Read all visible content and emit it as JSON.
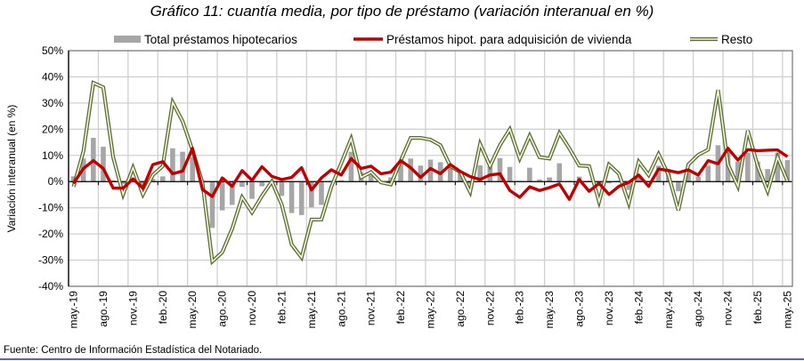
{
  "chart_data": {
    "type": "bar+line",
    "title": "Gráfico 11: cuantía media, por tipo de préstamo (variación interanual en %)",
    "ylabel": "Variación interanual (en %)",
    "xlabel": "",
    "ylim": [
      -40,
      50
    ],
    "yticks": [
      "-40%",
      "-30%",
      "-20%",
      "-10%",
      "0%",
      "10%",
      "20%",
      "30%",
      "40%",
      "50%"
    ],
    "ytick_values": [
      -40,
      -30,
      -20,
      -10,
      0,
      10,
      20,
      30,
      40,
      50
    ],
    "grid": true,
    "legend_position": "top",
    "categories": [
      "may.-19",
      "jun.-19",
      "jul.-19",
      "ago.-19",
      "sep.-19",
      "oct.-19",
      "nov.-19",
      "dic.-19",
      "ene.-20",
      "feb.-20",
      "mar.-20",
      "abr.-20",
      "may.-20",
      "jun.-20",
      "jul.-20",
      "ago.-20",
      "sep.-20",
      "oct.-20",
      "nov.-20",
      "dic.-20",
      "ene.-21",
      "feb.-21",
      "mar.-21",
      "abr.-21",
      "may.-21",
      "jun.-21",
      "jul.-21",
      "ago.-21",
      "sep.-21",
      "oct.-21",
      "nov.-21",
      "dic.-21",
      "ene.-22",
      "feb.-22",
      "mar.-22",
      "abr.-22",
      "may.-22",
      "jun.-22",
      "jul.-22",
      "ago.-22",
      "sep.-22",
      "oct.-22",
      "nov.-22",
      "dic.-22",
      "ene.-23",
      "feb.-23",
      "mar.-23",
      "abr.-23",
      "may.-23",
      "jun.-23",
      "jul.-23",
      "ago.-23",
      "sep.-23",
      "oct.-23",
      "nov.-23",
      "dic.-23",
      "ene.-24",
      "feb.-24",
      "mar.-24",
      "abr.-24",
      "may.-24",
      "jun.-24",
      "jul.-24",
      "ago.-24",
      "sep.-24",
      "oct.-24",
      "nov.-24",
      "dic.-24",
      "ene.-25",
      "feb.-25",
      "mar.-25",
      "abr.-25",
      "may.-25"
    ],
    "xtick_labels": [
      "may.-19",
      "ago.-19",
      "nov.-19",
      "feb.-20",
      "may.-20",
      "ago.-20",
      "nov.-20",
      "feb.-21",
      "may.-21",
      "ago.-21",
      "nov.-21",
      "feb.-22",
      "may.-22",
      "ago.-22",
      "nov.-22",
      "feb.-23",
      "may.-23",
      "ago.-23",
      "nov.-23",
      "feb.-24",
      "may.-24",
      "ago.-24",
      "nov.-24",
      "feb.-25",
      "may.-25"
    ],
    "series": [
      {
        "name": "Total préstamos hipotecarios",
        "kind": "bar",
        "color": "#a6a6a6",
        "values": [
          2,
          8.8,
          16.7,
          13.3,
          0.5,
          -1,
          0.5,
          -1.5,
          1,
          2,
          12.7,
          11.4,
          9.3,
          0.5,
          -17.7,
          -11,
          -8.9,
          -2,
          -6.6,
          -1.8,
          0.3,
          -5.5,
          -12,
          -12.8,
          -9.8,
          -8.9,
          0.3,
          0.5,
          11.4,
          3.6,
          2.5,
          0.3,
          1.6,
          7,
          8.8,
          6.1,
          8.4,
          7.4,
          5.9,
          3.6,
          -1,
          6.2,
          5.9,
          9,
          5.6,
          0.3,
          5.3,
          0.8,
          1.6,
          7,
          0.3,
          1.9,
          0.3,
          -0.9,
          -0.7,
          0.3,
          -3.2,
          1.9,
          0.3,
          6.1,
          4.8,
          -3.7,
          3.6,
          1.9,
          6.1,
          13.9,
          12.5,
          7.6,
          11,
          7.6,
          4.8,
          11,
          8.2
        ]
      },
      {
        "name": "Préstamos hipot. para adquisición de vivienda",
        "kind": "line",
        "color": "#c00000",
        "values": [
          -0.7,
          5,
          8,
          5,
          -2.5,
          -2.5,
          1,
          -2.5,
          6.5,
          7.6,
          3,
          4,
          12.7,
          -3,
          -5.7,
          1.4,
          -1.8,
          4.2,
          0.5,
          5.7,
          2,
          0.8,
          1.6,
          5.3,
          -3.2,
          1.4,
          4.5,
          2.5,
          8.8,
          5,
          5.9,
          3,
          3.6,
          8,
          5.3,
          1.6,
          5,
          3,
          6.5,
          3.9,
          1.9,
          0.8,
          2.5,
          3,
          -3.4,
          -6,
          -2,
          -3.4,
          -2.3,
          -0.9,
          -6.8,
          0.8,
          -3.7,
          -0.7,
          -4.9,
          -1.8,
          -0.3,
          2.5,
          -1.8,
          4.8,
          4.2,
          3.4,
          4.5,
          2.5,
          8,
          6.8,
          12.7,
          8.2,
          12.2,
          11.8,
          12,
          12.1,
          9.5
        ]
      },
      {
        "name": "Resto",
        "kind": "double-line",
        "color": "#5a6e2e",
        "values": [
          -2,
          11.6,
          37.7,
          36,
          9.3,
          -4.9,
          5.3,
          -4.9,
          2.5,
          5.9,
          30.3,
          23,
          12,
          -0.3,
          -30.5,
          -27,
          -18,
          -6,
          -11.8,
          -5.5,
          0,
          -8.8,
          -24,
          -29,
          -14.5,
          -14.5,
          -2,
          7,
          16.4,
          1.6,
          3.6,
          -0.3,
          -1.1,
          8,
          16.7,
          16.7,
          16,
          13.9,
          5.9,
          3.6,
          -4,
          14.4,
          5.9,
          13.9,
          20,
          8.8,
          17.5,
          9.3,
          8.8,
          18.6,
          12.7,
          6.1,
          5.9,
          -7.7,
          6.5,
          3,
          -8.3,
          7.6,
          2.5,
          10.5,
          2.5,
          -11,
          6.5,
          10.2,
          12.2,
          35,
          6.5,
          -1.8,
          19.5,
          5.9,
          -3.7,
          9.3,
          0.2
        ]
      }
    ]
  },
  "source": "Fuente: Centro de Información Estadística del Notariado."
}
